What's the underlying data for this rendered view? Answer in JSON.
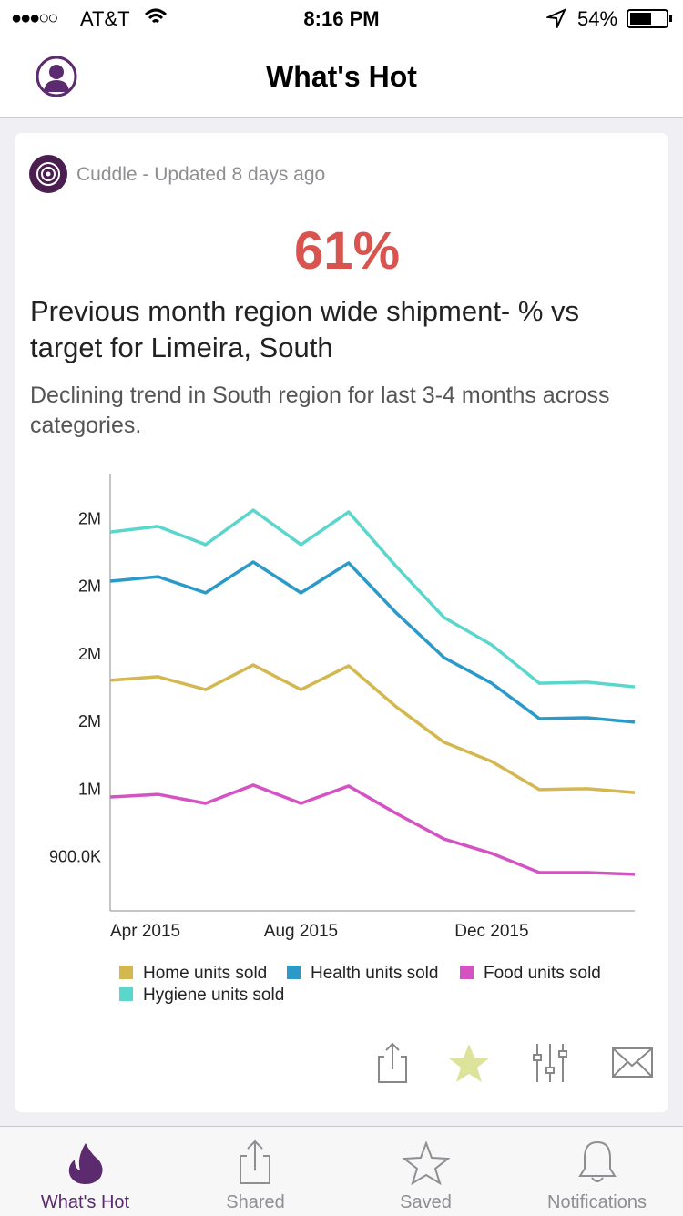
{
  "status": {
    "carrier": "AT&T",
    "time": "8:16 PM",
    "battery": "54%"
  },
  "header": {
    "title": "What's Hot"
  },
  "card": {
    "source": "Cuddle - Updated 8 days ago",
    "kpi": "61%",
    "headline": "Previous month region wide shipment- % vs target for Limeira, South",
    "description": "Declining trend in South region for last 3-4 months across categories."
  },
  "chart_data": {
    "type": "line",
    "x": [
      "2015-04",
      "2015-05",
      "2015-06",
      "2015-07",
      "2015-08",
      "2015-09",
      "2015-10",
      "2015-11",
      "2015-12",
      "2016-01",
      "2016-02",
      "2016-03"
    ],
    "xticks": [
      {
        "value": "2015-04",
        "label": "Apr 2015"
      },
      {
        "value": "2015-08",
        "label": "Aug 2015"
      },
      {
        "value": "2015-12",
        "label": "Dec 2015"
      }
    ],
    "ylim": [
      660000,
      2600000
    ],
    "yticks": [
      {
        "value": 900000,
        "label": "900.0K"
      },
      {
        "value": 1200000,
        "label": "1M"
      },
      {
        "value": 1500000,
        "label": "2M"
      },
      {
        "value": 1800000,
        "label": "2M"
      },
      {
        "value": 2100000,
        "label": "2M"
      },
      {
        "value": 2400000,
        "label": "2M"
      }
    ],
    "grid": false,
    "series": [
      {
        "name": "Home units sold",
        "color": "#d4b84f",
        "values": [
          1683000,
          1699000,
          1642000,
          1751000,
          1642000,
          1747000,
          1565000,
          1408000,
          1323000,
          1198000,
          1202000,
          1185000
        ]
      },
      {
        "name": "Health units sold",
        "color": "#2b9ac9",
        "values": [
          2123000,
          2143000,
          2071000,
          2208000,
          2071000,
          2204000,
          1982000,
          1784000,
          1670000,
          1513000,
          1517000,
          1497000
        ]
      },
      {
        "name": "Food units sold",
        "color": "#d452c2",
        "values": [
          1165000,
          1177000,
          1137000,
          1218000,
          1137000,
          1214000,
          1092000,
          979000,
          915000,
          830000,
          830000,
          822000
        ]
      },
      {
        "name": "Hygiene units sold",
        "color": "#5bd6cc",
        "values": [
          2341000,
          2366000,
          2285000,
          2438000,
          2285000,
          2430000,
          2188000,
          1962000,
          1840000,
          1670000,
          1675000,
          1654000
        ]
      }
    ]
  },
  "tabs": [
    "What's Hot",
    "Shared",
    "Saved",
    "Notifications"
  ]
}
